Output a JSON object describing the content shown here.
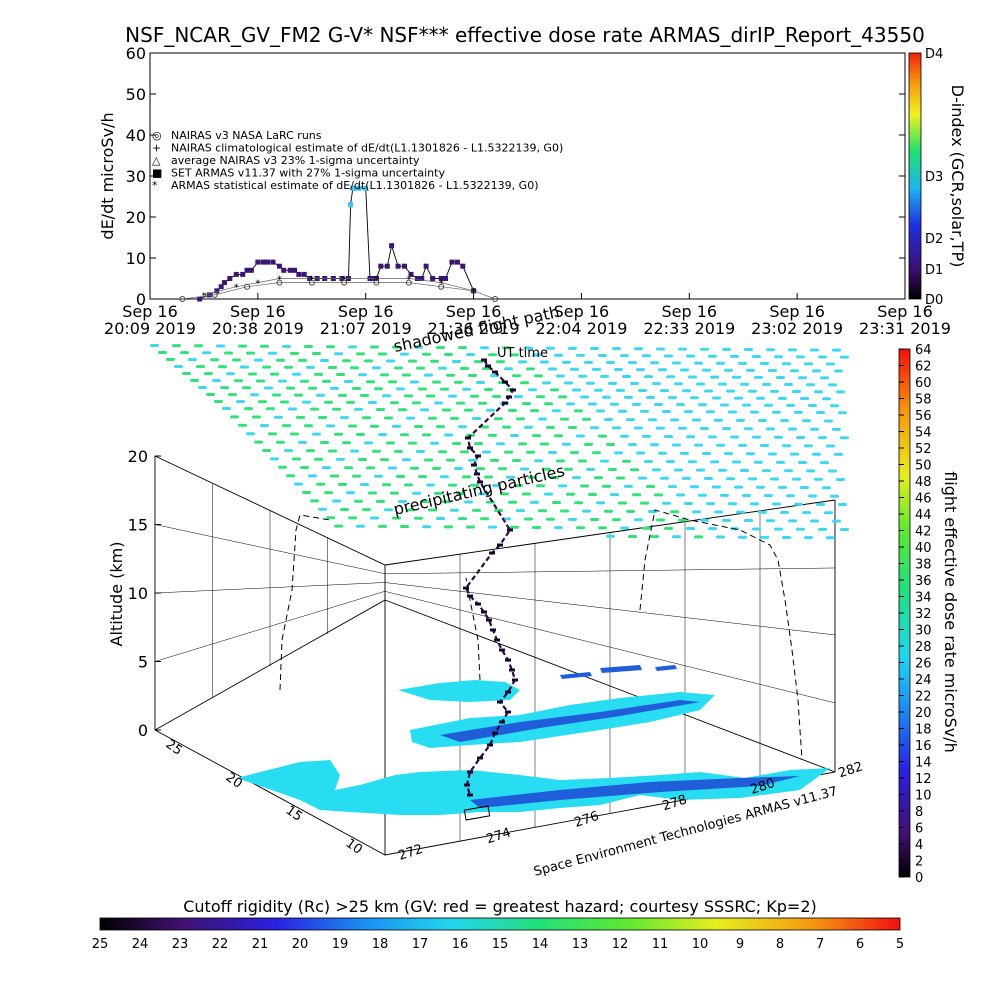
{
  "colors": {
    "background": "#ffffff",
    "axis": "#000000",
    "particle_green": "#34e07a",
    "particle_cyan": "#3fd6f0",
    "ground_cyan": "#28dcf2",
    "ground_blue": "#1f5ed8",
    "flight_track": "#2b0b3a"
  },
  "title": "NSF_NCAR_GV_FM2 G-V* NSF*** effective dose rate ARMAS_dirIP_Report_43550",
  "chart_data": [
    {
      "type": "line",
      "ylabel": "dE/dt microSv/h",
      "ylim": [
        0,
        60
      ],
      "yticks": [
        "0",
        "10",
        "20",
        "30",
        "40",
        "50",
        "60"
      ],
      "xticks": [
        [
          "Sep 16",
          "20:09 2019"
        ],
        [
          "Sep 16",
          "20:38 2019"
        ],
        [
          "Sep 16",
          "21:07 2019"
        ],
        [
          "Sep 16",
          "21:36 2019"
        ],
        [
          "Sep 16",
          "22:04 2019"
        ],
        [
          "Sep 16",
          "22:33 2019"
        ],
        [
          "Sep 16",
          "23:02 2019"
        ],
        [
          "Sep 16",
          "23:31 2019"
        ]
      ],
      "xlabel_overlay": "UT time",
      "legend": [
        "NAIRAS v3 NASA LaRC runs",
        "NAIRAS climatological estimate of dE/dt(L1.1301826 - L1.5322139, G0)",
        "average NAIRAS v3 23% 1-sigma uncertainty",
        "SET ARMAS v11.37 with 27% 1-sigma uncertainty",
        "ARMAS statistical estimate of dE/dt(L1.1301826 - L1.5322139, G0)"
      ],
      "colorbar": {
        "label": "D-index (GCR,solar,TP)",
        "ticks": [
          "D0",
          "D1",
          "D2",
          "D3",
          "D4"
        ]
      },
      "series": [
        {
          "name": "SET ARMAS v11.37 with 27% 1-sigma uncertainty",
          "x": [
            0.46,
            0.55,
            0.62,
            0.66,
            0.69,
            0.74,
            0.8,
            0.86,
            0.9,
            0.94,
            1.0,
            1.05,
            1.09,
            1.14,
            1.2,
            1.24,
            1.3,
            1.34,
            1.38,
            1.43,
            1.48,
            1.55,
            1.62,
            1.7,
            1.78,
            1.84,
            1.86,
            1.88,
            1.9,
            1.94,
            2.0,
            2.04,
            2.07,
            2.1,
            2.14,
            2.2,
            2.24,
            2.3,
            2.36,
            2.42,
            2.48,
            2.52,
            2.56,
            2.62,
            2.7,
            2.74,
            2.8,
            2.85,
            2.9,
            3.0
          ],
          "y": [
            0,
            1,
            2,
            3,
            4,
            5,
            6,
            6,
            7,
            7,
            9,
            9,
            9,
            9,
            8,
            7,
            7,
            7,
            6,
            6,
            5,
            5,
            5,
            5,
            5,
            5,
            23,
            27,
            27,
            27,
            27,
            5,
            5,
            5,
            8,
            8,
            13,
            8,
            8,
            6,
            5,
            5,
            8,
            5,
            5,
            5,
            9,
            9,
            8,
            2
          ]
        },
        {
          "name": "NAIRAS v3 NASA LaRC runs",
          "x": [
            0.3,
            0.6,
            0.9,
            1.2,
            1.5,
            1.8,
            2.1,
            2.4,
            2.7,
            3.0,
            3.2
          ],
          "y": [
            0,
            1,
            3,
            4,
            4,
            4,
            4,
            4,
            3,
            2,
            0
          ]
        },
        {
          "name": "ARMAS statistical estimate of dE/dt(L1.1301826 - L1.5322139, G0)",
          "x": [
            0.5,
            0.8,
            1.0,
            1.2,
            1.5,
            1.8,
            2.1,
            2.4,
            2.7,
            3.0
          ],
          "y": [
            1,
            3,
            4,
            5,
            5,
            5,
            5,
            5,
            4,
            2
          ]
        }
      ]
    },
    {
      "type": "scatter",
      "ylabel": "Altitude (km)",
      "zticks": [
        "0",
        "5",
        "10",
        "15",
        "20"
      ],
      "xticks": [
        "272",
        "274",
        "276",
        "278",
        "280",
        "282"
      ],
      "yticks": [
        "10",
        "15",
        "20",
        "25"
      ],
      "annotations": [
        "shadowed flight path",
        "precipitating particles",
        "UT time"
      ],
      "credit": "Space Environment Technologies ARMAS v11.37",
      "colorbar": {
        "label": "flight effective dose rate microSv/h",
        "ticks": [
          "0",
          "2",
          "4",
          "6",
          "8",
          "10",
          "12",
          "14",
          "16",
          "18",
          "20",
          "22",
          "24",
          "26",
          "28",
          "30",
          "32",
          "34",
          "36",
          "38",
          "40",
          "42",
          "44",
          "46",
          "48",
          "50",
          "52",
          "54",
          "56",
          "58",
          "60",
          "62",
          "64"
        ]
      }
    },
    {
      "type": "heatmap",
      "title": "Cutoff rigidity (Rc) >25 km (GV: red = greatest hazard; courtesy SSSRC; Kp=2)",
      "ticks": [
        "25",
        "24",
        "23",
        "22",
        "21",
        "20",
        "19",
        "18",
        "17",
        "16",
        "15",
        "14",
        "13",
        "12",
        "11",
        "10",
        "9",
        "8",
        "7",
        "6",
        "5"
      ]
    }
  ]
}
